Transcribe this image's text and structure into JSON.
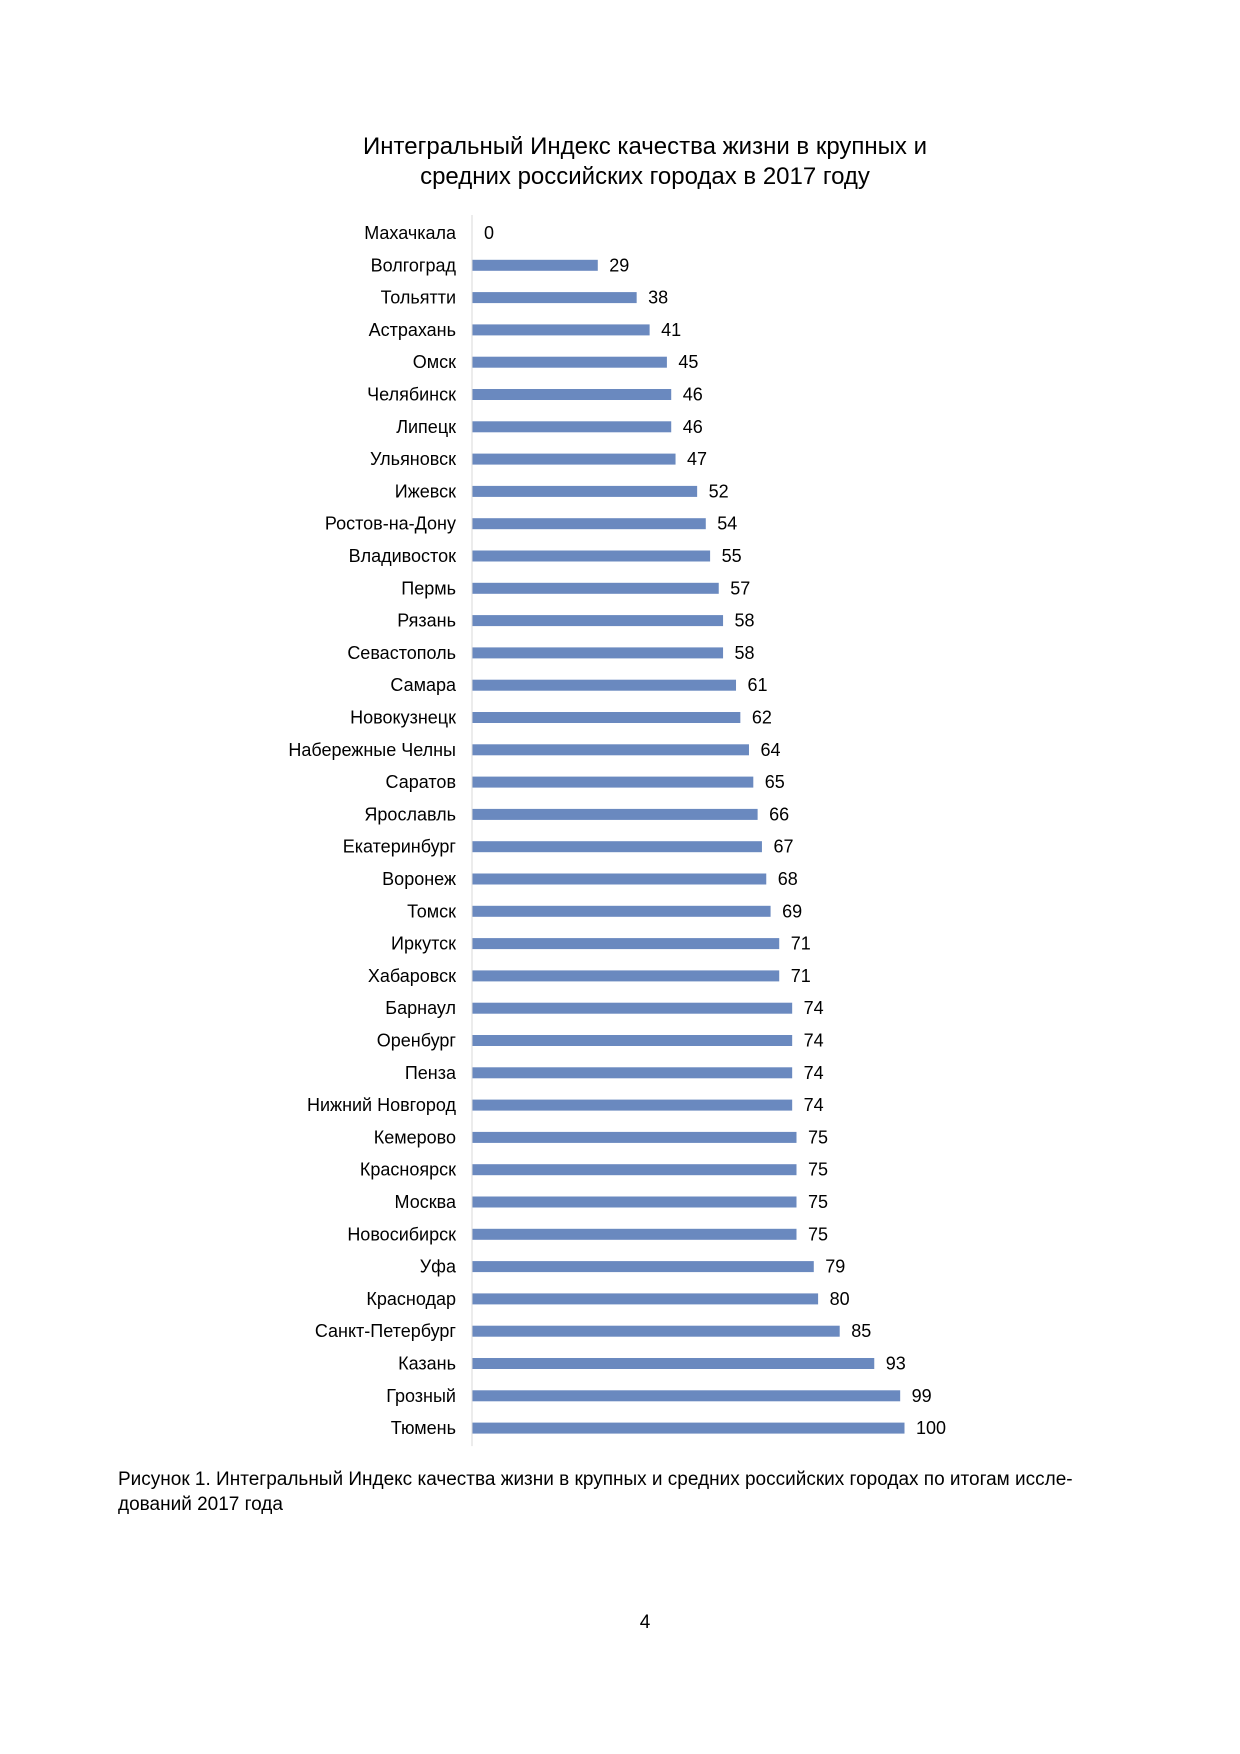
{
  "chart_data": {
    "type": "bar",
    "orientation": "horizontal",
    "title_lines": [
      "Интегральный Индекс качества жизни в крупных и",
      "средних российских городах в 2017 году"
    ],
    "categories": [
      "Махачкала",
      "Волгоград",
      "Тольятти",
      "Астрахань",
      "Омск",
      "Челябинск",
      "Липецк",
      "Ульяновск",
      "Ижевск",
      "Ростов-на-Дону",
      "Владивосток",
      "Пермь",
      "Рязань",
      "Севастополь",
      "Самара",
      "Новокузнецк",
      "Набережные Челны",
      "Саратов",
      "Ярославль",
      "Екатеринбург",
      "Воронеж",
      "Томск",
      "Иркутск",
      "Хабаровск",
      "Барнаул",
      "Оренбург",
      "Пенза",
      "Нижний Новгород",
      "Кемерово",
      "Красноярск",
      "Москва",
      "Новосибирск",
      "Уфа",
      "Краснодар",
      "Санкт-Петербург",
      "Казань",
      "Грозный",
      "Тюмень"
    ],
    "values": [
      0,
      29,
      38,
      41,
      45,
      46,
      46,
      47,
      52,
      54,
      55,
      57,
      58,
      58,
      61,
      62,
      64,
      65,
      66,
      67,
      68,
      69,
      71,
      71,
      74,
      74,
      74,
      74,
      75,
      75,
      75,
      75,
      79,
      80,
      85,
      93,
      99,
      100
    ],
    "xlim": [
      0,
      100
    ],
    "grid": false,
    "legend": "none",
    "data_labels": true,
    "bar_color": "#6a89bf"
  },
  "caption_lines": [
    "Рисунок 1. Интегральный Индекс качества жизни в крупных и средних российских городах по итогам иссле-",
    "дований 2017 года"
  ],
  "page_number": "4"
}
